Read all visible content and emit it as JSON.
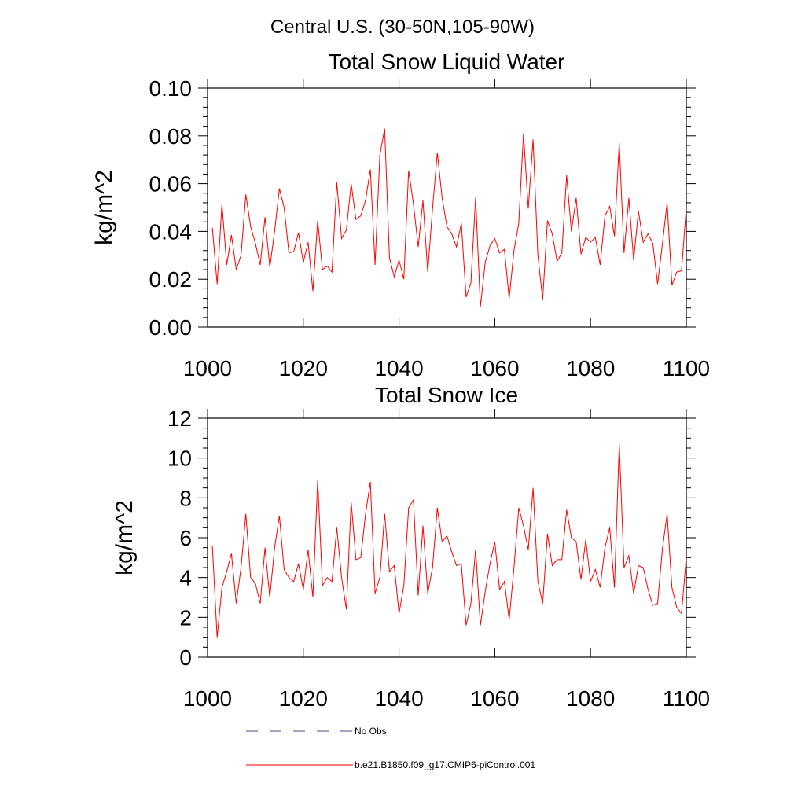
{
  "figure": {
    "title": "Central U.S. (30-50N,105-90W)"
  },
  "chart_data": [
    {
      "type": "line",
      "title": "Total Snow Liquid Water",
      "xlabel": "",
      "ylabel": "kg/m^2",
      "xlim": [
        1000,
        1100
      ],
      "ylim": [
        0.0,
        0.1
      ],
      "x_ticks": [
        "1000",
        "1020",
        "1040",
        "1060",
        "1080",
        "1100"
      ],
      "y_ticks": [
        "0.00",
        "0.02",
        "0.04",
        "0.06",
        "0.08",
        "0.10"
      ],
      "x_start": 1001,
      "series": [
        {
          "name": "b.e21.B1850.f09_g17.CMIP6-piControl.001",
          "color": "#ff0000",
          "values": [
            0.0415,
            0.018,
            0.0515,
            0.026,
            0.0385,
            0.024,
            0.03,
            0.0555,
            0.042,
            0.035,
            0.026,
            0.046,
            0.025,
            0.04,
            0.058,
            0.05,
            0.031,
            0.0315,
            0.0395,
            0.027,
            0.0355,
            0.015,
            0.0445,
            0.024,
            0.0255,
            0.023,
            0.0605,
            0.037,
            0.0405,
            0.06,
            0.045,
            0.0465,
            0.053,
            0.066,
            0.026,
            0.072,
            0.083,
            0.029,
            0.021,
            0.028,
            0.02,
            0.0655,
            0.0515,
            0.0335,
            0.053,
            0.023,
            0.0495,
            0.073,
            0.054,
            0.042,
            0.039,
            0.0335,
            0.0435,
            0.0125,
            0.0185,
            0.054,
            0.0085,
            0.027,
            0.034,
            0.037,
            0.031,
            0.0325,
            0.012,
            0.032,
            0.0435,
            0.081,
            0.0495,
            0.0785,
            0.03,
            0.0115,
            0.0445,
            0.039,
            0.0275,
            0.031,
            0.0635,
            0.04,
            0.054,
            0.0305,
            0.0375,
            0.0355,
            0.0375,
            0.026,
            0.0465,
            0.0505,
            0.038,
            0.077,
            0.031,
            0.054,
            0.028,
            0.0485,
            0.0355,
            0.039,
            0.035,
            0.018,
            0.0345,
            0.052,
            0.0175,
            0.023,
            0.0235,
            0.05
          ]
        }
      ]
    },
    {
      "type": "line",
      "title": "Total Snow Ice",
      "xlabel": "",
      "ylabel": "kg/m^2",
      "xlim": [
        1000,
        1100
      ],
      "ylim": [
        0,
        12
      ],
      "x_ticks": [
        "1000",
        "1020",
        "1040",
        "1060",
        "1080",
        "1100"
      ],
      "y_ticks": [
        "0",
        "2",
        "4",
        "6",
        "8",
        "10",
        "12"
      ],
      "x_start": 1001,
      "series": [
        {
          "name": "b.e21.B1850.f09_g17.CMIP6-piControl.001",
          "color": "#ff0000",
          "values": [
            5.6,
            1.0,
            3.5,
            4.3,
            5.2,
            2.7,
            4.5,
            7.2,
            4.0,
            3.7,
            2.7,
            5.5,
            3.0,
            5.5,
            7.1,
            4.4,
            4.0,
            3.8,
            4.7,
            3.4,
            5.4,
            3.0,
            8.9,
            3.6,
            4.0,
            3.8,
            6.5,
            4.0,
            2.4,
            7.8,
            4.9,
            5.0,
            7.2,
            8.8,
            3.2,
            4.0,
            7.2,
            4.3,
            4.6,
            2.2,
            3.6,
            7.5,
            7.9,
            3.1,
            6.6,
            3.2,
            4.5,
            7.5,
            5.8,
            6.1,
            5.3,
            4.6,
            4.7,
            1.6,
            2.7,
            5.4,
            1.6,
            3.3,
            4.7,
            5.8,
            3.4,
            3.8,
            1.9,
            4.5,
            7.5,
            6.6,
            5.4,
            8.5,
            3.8,
            2.7,
            6.2,
            4.6,
            4.9,
            4.9,
            7.4,
            6.0,
            5.8,
            3.9,
            5.9,
            3.8,
            4.4,
            3.5,
            5.5,
            6.5,
            3.5,
            10.7,
            4.5,
            5.1,
            3.2,
            4.6,
            4.5,
            3.4,
            2.6,
            2.7,
            5.4,
            7.2,
            3.5,
            2.5,
            2.2,
            5.0
          ]
        }
      ]
    }
  ],
  "legend": {
    "items": [
      {
        "label": "No Obs",
        "color": "#4a4a8a",
        "style": "dashed"
      },
      {
        "label": "b.e21.B1850.f09_g17.CMIP6-piControl.001",
        "color": "#ff0000",
        "style": "solid"
      }
    ]
  }
}
